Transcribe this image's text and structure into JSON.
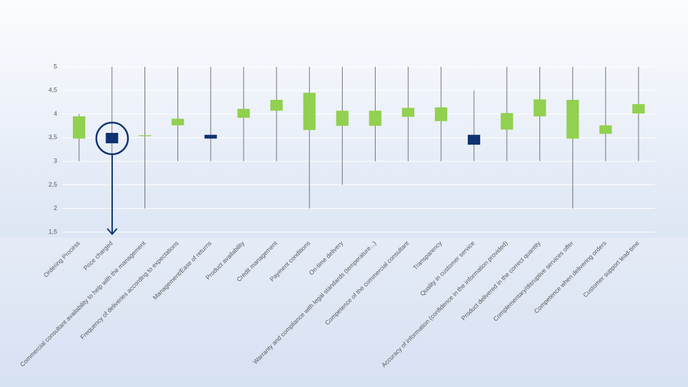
{
  "chart_data": {
    "type": "candlestick",
    "categories": [
      "Ordering Process",
      "Price charged",
      "Commercial consultant availability to help with the management",
      "Frequency of deliveries according to expectations",
      "Management/Ease of returns",
      "Product availability",
      "Credit management",
      "Payment conditions",
      "On-time delivery",
      "Warranty and compliance with legal standards (temperature...)",
      "Competence of the commercial consultant",
      "Transparency",
      "Quality in customer service",
      "Accuracy of information (confidence in the information provided)",
      "Product delivered in the correct quantity",
      "Complementary/disruptive services offer",
      "Competence when delivering orders",
      "Customer support lead-time"
    ],
    "open": [
      3.48,
      3.6,
      3.53,
      3.76,
      3.56,
      3.92,
      4.07,
      3.66,
      3.75,
      3.75,
      3.94,
      3.85,
      3.56,
      3.67,
      3.95,
      3.48,
      3.58,
      4.01
    ],
    "close": [
      3.95,
      3.38,
      3.55,
      3.9,
      3.48,
      4.11,
      4.3,
      4.45,
      4.07,
      4.07,
      4.13,
      4.14,
      3.35,
      4.02,
      4.31,
      4.3,
      3.76,
      4.21
    ],
    "low": [
      3,
      3,
      2,
      3,
      3,
      3,
      3,
      2,
      2.5,
      3,
      3,
      3,
      3,
      3,
      3,
      2,
      3,
      3
    ],
    "high": [
      4,
      5,
      5,
      5,
      5,
      5,
      5,
      5,
      5,
      5,
      5,
      5,
      4.5,
      5,
      5,
      5,
      5,
      5
    ],
    "up_color": "#92d050",
    "down_color": "#0e3370",
    "wick_color": "#707070",
    "ylim": [
      1.5,
      5
    ],
    "yticks": [
      {
        "value": 1.5,
        "label": "1,5"
      },
      2,
      {
        "value": 2.5,
        "label": "2,5"
      },
      3,
      {
        "value": 3.5,
        "label": "3,5"
      },
      4,
      {
        "value": 4.5,
        "label": "4,5"
      },
      5
    ],
    "grid": true
  }
}
